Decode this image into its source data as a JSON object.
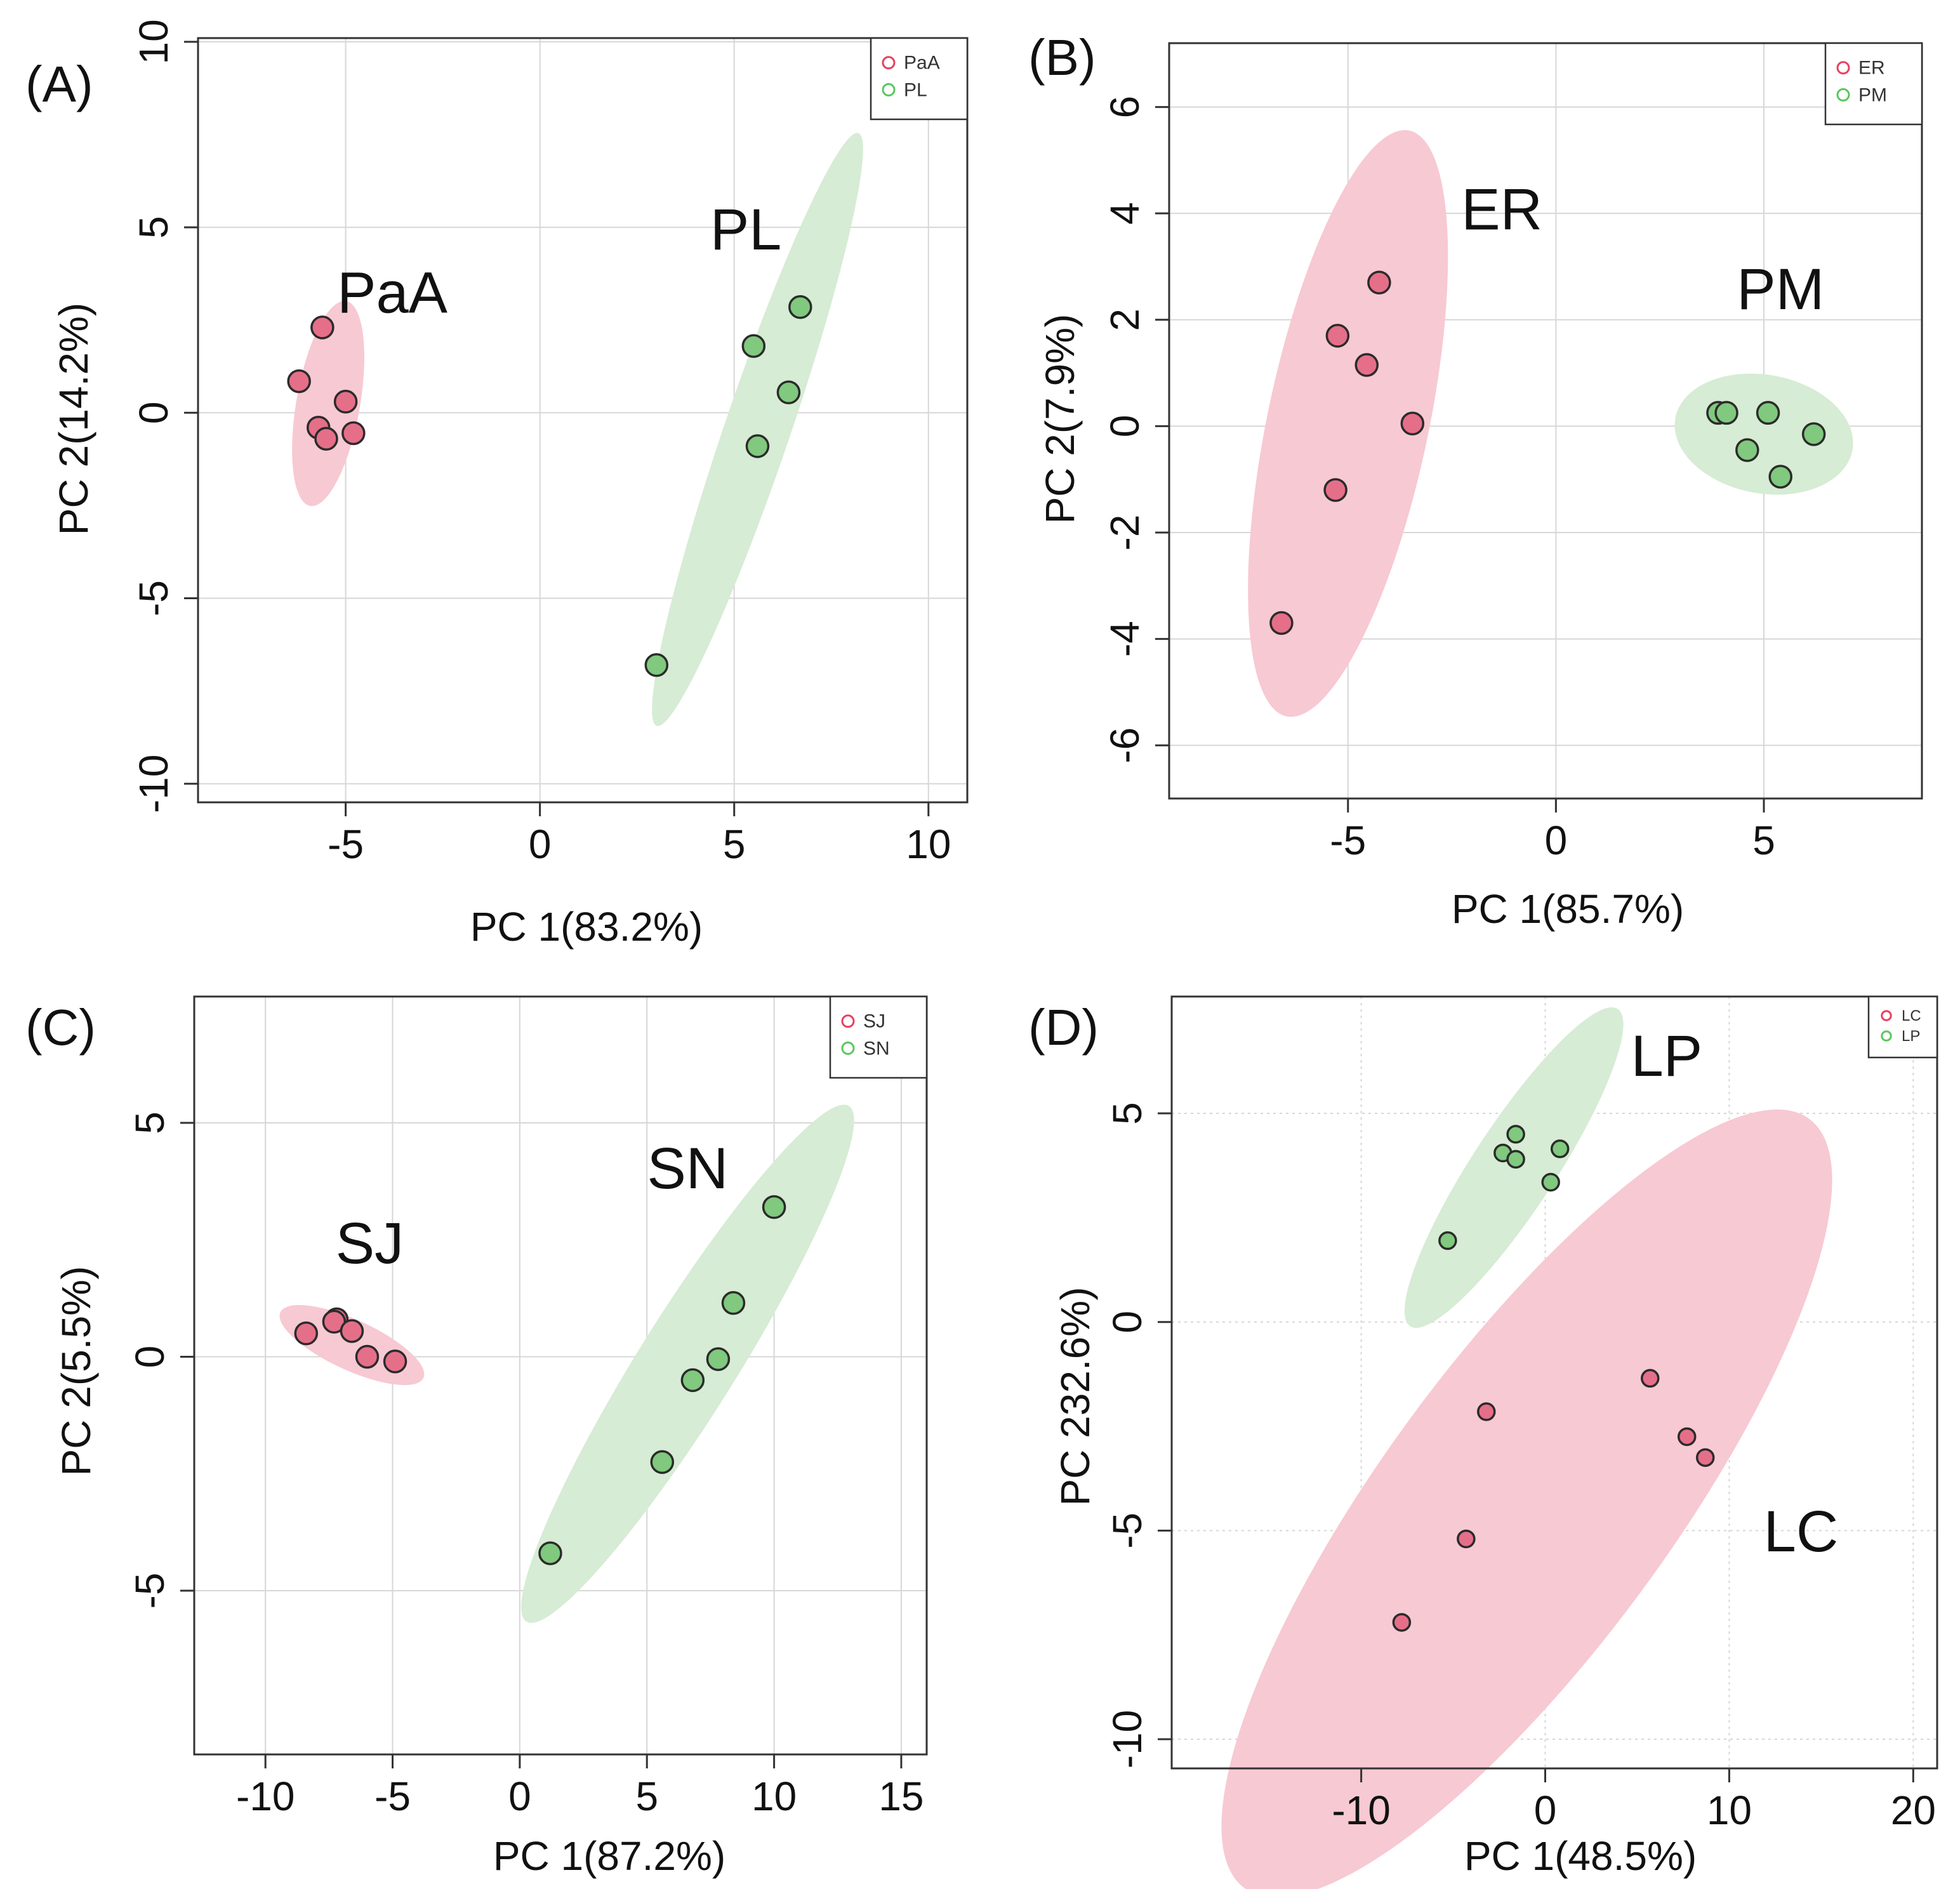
{
  "chart_data": [
    {
      "panel_label": "(A)",
      "type": "scatter",
      "xlabel": "PC 1(83.2%)",
      "ylabel": "PC 2(14.2%)",
      "xlim": [
        -8.8,
        11
      ],
      "ylim": [
        -10.5,
        10.1
      ],
      "xticks": [
        -5,
        0,
        5,
        10
      ],
      "yticks": [
        -10,
        -5,
        0,
        5,
        10
      ],
      "grid_style": "solid",
      "legend": [
        {
          "name": "PaA",
          "color": "#e8405f"
        },
        {
          "name": "PL",
          "color": "#58c75e"
        }
      ],
      "series": [
        {
          "name": "PaA",
          "color": "#e56f89",
          "fill": "#f7c9d3",
          "x": [
            -5.6,
            -6.2,
            -5.0,
            -5.7,
            -5.5,
            -4.8
          ],
          "y": [
            2.3,
            0.85,
            0.3,
            -0.4,
            -0.7,
            -0.55
          ],
          "ellipse": {
            "cx": -5.45,
            "cy": 0.25,
            "rx": 2.8,
            "ry": 0.82,
            "angle": 80.5
          }
        },
        {
          "name": "PL",
          "color": "#80c97e",
          "fill": "#d6ecd4",
          "x": [
            6.7,
            5.5,
            6.4,
            5.6,
            3.0
          ],
          "y": [
            2.85,
            1.8,
            0.55,
            -0.9,
            -6.8
          ],
          "ellipse": {
            "cx": 5.6,
            "cy": -0.45,
            "rx": 8.4,
            "ry": 0.85,
            "angle": 72
          }
        }
      ],
      "annotations": [
        {
          "text": "PaA",
          "x": -3.8,
          "y": 2.7
        },
        {
          "text": "PL",
          "x": 5.3,
          "y": 4.4
        }
      ]
    },
    {
      "panel_label": "(B)",
      "type": "scatter",
      "xlabel": "PC 1(85.7%)",
      "ylabel": "PC 2(7.9%)",
      "xlim": [
        -9.3,
        8.8
      ],
      "ylim": [
        -7,
        7.2
      ],
      "xticks": [
        -5,
        0,
        5
      ],
      "yticks": [
        -6,
        -4,
        -2,
        0,
        2,
        4,
        6
      ],
      "grid_style": "solid",
      "legend": [
        {
          "name": "ER",
          "color": "#e8405f"
        },
        {
          "name": "PM",
          "color": "#58c75e"
        }
      ],
      "series": [
        {
          "name": "ER",
          "color": "#e56f89",
          "fill": "#f7c9d3",
          "x": [
            -4.25,
            -5.25,
            -4.55,
            -3.45,
            -5.3,
            -6.6
          ],
          "y": [
            2.7,
            1.7,
            1.15,
            0.05,
            -1.2,
            -3.7
          ],
          "ellipse": {
            "cx": -5.0,
            "cy": 0.05,
            "rx": 5.7,
            "ry": 1.9,
            "angle": 75
          }
        },
        {
          "name": "PM",
          "color": "#80c97e",
          "fill": "#d6ecd4",
          "x": [
            3.9,
            4.1,
            5.1,
            6.2,
            4.6,
            5.4
          ],
          "y": [
            0.25,
            0.25,
            0.25,
            -0.15,
            -0.45,
            -0.95
          ],
          "ellipse": {
            "cx": 5.0,
            "cy": -0.15,
            "rx": 2.15,
            "ry": 1.12,
            "angle": -8
          }
        }
      ],
      "annotations": [
        {
          "text": "ER",
          "x": -1.3,
          "y": 3.7
        },
        {
          "text": "PM",
          "x": 5.4,
          "y": 2.2
        }
      ]
    },
    {
      "panel_label": "(C)",
      "type": "scatter",
      "xlabel": "PC 1(87.2%)",
      "ylabel": "PC 2(5.5%)",
      "xlim": [
        -12.8,
        16
      ],
      "ylim": [
        -8.5,
        7.7
      ],
      "xticks": [
        -10,
        -5,
        0,
        5,
        10,
        15
      ],
      "yticks": [
        -5,
        0,
        5
      ],
      "grid_style": "solid",
      "legend": [
        {
          "name": "SJ",
          "color": "#e8405f"
        },
        {
          "name": "SN",
          "color": "#58c75e"
        }
      ],
      "series": [
        {
          "name": "SJ",
          "color": "#e56f89",
          "fill": "#f7c9d3",
          "x": [
            -7.2,
            -7.3,
            -6.6,
            -8.4,
            -6.0,
            -4.9
          ],
          "y": [
            0.8,
            0.75,
            0.55,
            0.5,
            0.0,
            -0.1
          ],
          "ellipse": {
            "cx": -6.6,
            "cy": 0.25,
            "rx": 2.9,
            "ry": 0.55,
            "angle": -14
          }
        },
        {
          "name": "SN",
          "color": "#80c97e",
          "fill": "#d6ecd4",
          "x": [
            10.0,
            8.4,
            7.8,
            6.8,
            5.6,
            1.2
          ],
          "y": [
            3.2,
            1.15,
            -0.05,
            -0.5,
            -2.25,
            -4.2
          ],
          "ellipse": {
            "cx": 6.6,
            "cy": -0.15,
            "rx": 8.4,
            "ry": 1.25,
            "angle": 41
          }
        }
      ],
      "annotations": [
        {
          "text": "SJ",
          "x": -5.9,
          "y": 2.0
        },
        {
          "text": "SN",
          "x": 6.6,
          "y": 3.6
        }
      ]
    },
    {
      "panel_label": "(D)",
      "type": "scatter",
      "xlabel": "PC 1(48.5%)",
      "ylabel": "PC 232.6%)",
      "xlim": [
        -20.3,
        21.3
      ],
      "ylim": [
        -10.7,
        7.8
      ],
      "xticks": [
        -10,
        0,
        10,
        20
      ],
      "yticks": [
        -10,
        -5,
        0,
        5
      ],
      "grid_style": "dotted",
      "legend": [
        {
          "name": "LC",
          "color": "#e8405f"
        },
        {
          "name": "LP",
          "color": "#58c75e"
        }
      ],
      "series": [
        {
          "name": "LC",
          "color": "#e56f89",
          "fill": "#f7c9d3",
          "x": [
            5.7,
            -3.2,
            7.7,
            8.7,
            -4.3,
            -7.8
          ],
          "y": [
            -1.35,
            -2.15,
            -2.75,
            -3.25,
            -5.2,
            -7.2
          ],
          "ellipse": {
            "cx": -1.0,
            "cy": -4.35,
            "rx": 17.9,
            "ry": 3.9,
            "angle": 31
          }
        },
        {
          "name": "LP",
          "color": "#80c97e",
          "fill": "#d6ecd4",
          "x": [
            -1.6,
            -2.3,
            -1.6,
            0.8,
            0.3,
            -5.3
          ],
          "y": [
            4.5,
            4.05,
            3.9,
            4.15,
            3.35,
            1.95
          ],
          "ellipse": {
            "cx": -1.7,
            "cy": 3.7,
            "rx": 6.8,
            "ry": 1.15,
            "angle": 34
          }
        }
      ],
      "annotations": [
        {
          "text": "LP",
          "x": 6.6,
          "y": 5.9
        },
        {
          "text": "LC",
          "x": 13.9,
          "y": -5.5
        }
      ]
    }
  ]
}
